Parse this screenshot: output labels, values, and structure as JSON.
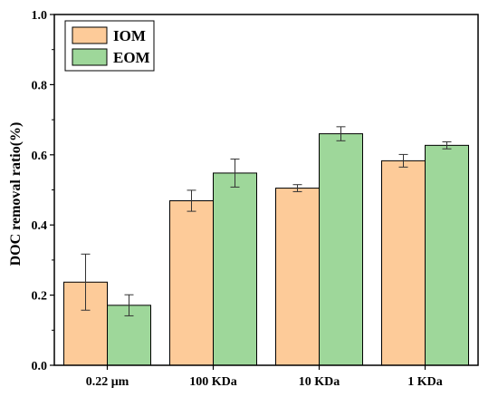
{
  "chart_data": {
    "type": "bar",
    "title": "",
    "xlabel": "",
    "ylabel": "DOC removal ratio(%)",
    "ylim": [
      0,
      1.0
    ],
    "yticks": [
      "0.0",
      "0.2",
      "0.4",
      "0.6",
      "0.8",
      "1.0"
    ],
    "categories": [
      "0.22 μm",
      "100 KDa",
      "10 KDa",
      "1 KDa"
    ],
    "series": [
      {
        "name": "IOM",
        "color": "#FDCB99",
        "values": [
          0.237,
          0.469,
          0.505,
          0.583
        ],
        "errors": [
          0.08,
          0.03,
          0.01,
          0.018
        ]
      },
      {
        "name": "EOM",
        "color": "#9ED79A",
        "values": [
          0.171,
          0.548,
          0.66,
          0.627
        ],
        "errors": [
          0.03,
          0.04,
          0.02,
          0.01
        ]
      }
    ],
    "grid": false,
    "legend_position": "top-left"
  }
}
